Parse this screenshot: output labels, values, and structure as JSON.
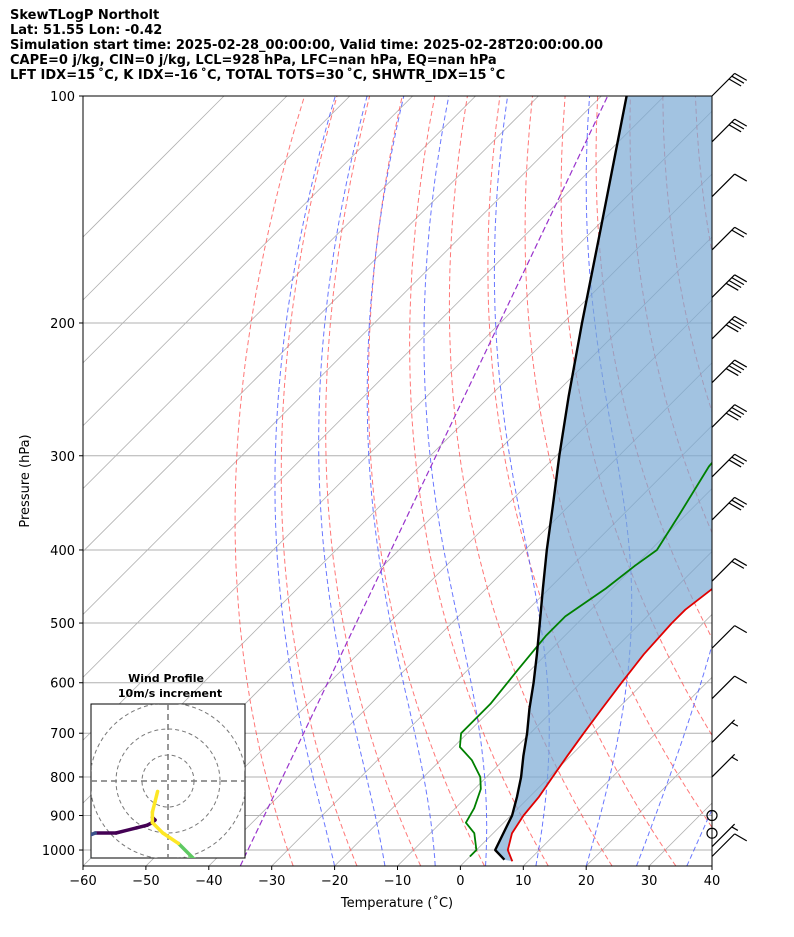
{
  "header": {
    "line1": "SkewTLogP Northolt",
    "line2": "Lat: 51.55   Lon: -0.42",
    "line3": "Simulation start time: 2025-02-28_00:00:00, Valid time: 2025-02-28T20:00:00.00",
    "line4": "CAPE=0 j/kg, CIN=0 j/kg, LCL=928 hPa, LFC=nan hPa, EQ=nan hPa",
    "line5": "LFT IDX=15 ˚C, K IDX=-16 ˚C, TOTAL TOTS=30 ˚C, SHWTR_IDX=15 ˚C"
  },
  "chart_data": {
    "type": "line",
    "xlabel": "Temperature (˚C)",
    "ylabel": "Pressure (hPa)",
    "x_ticks": [
      -60,
      -50,
      -40,
      -30,
      -20,
      -10,
      0,
      10,
      20,
      30,
      40
    ],
    "x_tick_labels": [
      "−60",
      "−50",
      "−40",
      "−30",
      "−20",
      "−10",
      "0",
      "10",
      "20",
      "30",
      "40"
    ],
    "y_ticks": [
      1000,
      900,
      800,
      700,
      600,
      500,
      400,
      300,
      200,
      100
    ],
    "xlim": [
      -60,
      40
    ],
    "ylim": [
      1050,
      100
    ],
    "y_scale": "log",
    "series": [
      {
        "role": "temperature",
        "color": "#e00000",
        "points": [
          [
            1035,
            7.5
          ],
          [
            1000,
            5
          ],
          [
            950,
            3
          ],
          [
            900,
            2
          ],
          [
            850,
            1.5
          ],
          [
            800,
            0.5
          ],
          [
            750,
            -0.5
          ],
          [
            700,
            -1.5
          ],
          [
            650,
            -2.5
          ],
          [
            600,
            -3.5
          ],
          [
            550,
            -4.5
          ],
          [
            500,
            -5
          ],
          [
            480,
            -5
          ],
          [
            450,
            -4
          ],
          [
            420,
            -4
          ],
          [
            400,
            -5
          ],
          [
            350,
            -9
          ],
          [
            300,
            -16
          ],
          [
            270,
            -19
          ],
          [
            250,
            -21
          ],
          [
            230,
            -22
          ],
          [
            210,
            -21
          ],
          [
            200,
            -19
          ],
          [
            185,
            -15
          ],
          [
            170,
            -12
          ],
          [
            150,
            -12
          ],
          [
            130,
            -11
          ],
          [
            115,
            -10
          ],
          [
            105,
            -10
          ],
          [
            100,
            -9
          ]
        ]
      },
      {
        "role": "dewpoint",
        "color": "#008000",
        "points": [
          [
            1020,
            0
          ],
          [
            1000,
            0
          ],
          [
            950,
            -3
          ],
          [
            920,
            -6
          ],
          [
            880,
            -7
          ],
          [
            830,
            -9
          ],
          [
            800,
            -11
          ],
          [
            760,
            -15
          ],
          [
            730,
            -19
          ],
          [
            700,
            -21
          ],
          [
            680,
            -21
          ],
          [
            640,
            -21
          ],
          [
            580,
            -22
          ],
          [
            520,
            -23
          ],
          [
            490,
            -23
          ],
          [
            450,
            -21
          ],
          [
            420,
            -20
          ],
          [
            400,
            -19
          ],
          [
            360,
            -21
          ],
          [
            310,
            -24
          ],
          [
            270,
            -25
          ],
          [
            240,
            -26
          ],
          [
            220,
            -25
          ],
          [
            200,
            -23
          ],
          [
            185,
            -22
          ],
          [
            170,
            -22
          ],
          [
            160,
            -21
          ],
          [
            145,
            -20
          ],
          [
            140,
            -19
          ],
          [
            132,
            -16
          ],
          [
            120,
            -14
          ],
          [
            110,
            -13
          ],
          [
            100,
            -11
          ]
        ]
      },
      {
        "role": "parcel",
        "color": "#000000",
        "points": [
          [
            1030,
            6
          ],
          [
            1000,
            3
          ],
          [
            928,
            1
          ],
          [
            900,
            0.2
          ],
          [
            850,
            -2
          ],
          [
            800,
            -4.5
          ],
          [
            750,
            -7.5
          ],
          [
            700,
            -10.5
          ],
          [
            650,
            -14
          ],
          [
            600,
            -17.5
          ],
          [
            550,
            -21.5
          ],
          [
            500,
            -26
          ],
          [
            450,
            -31
          ],
          [
            400,
            -36.5
          ],
          [
            350,
            -42.5
          ],
          [
            300,
            -49.5
          ],
          [
            250,
            -57.5
          ],
          [
            200,
            -67
          ],
          [
            150,
            -79
          ],
          [
            100,
            -96
          ]
        ]
      }
    ],
    "wind_barbs": [
      {
        "p": 100,
        "half": 0,
        "full": 3,
        "flag": 0
      },
      {
        "p": 115,
        "half": 0,
        "full": 3,
        "flag": 0
      },
      {
        "p": 136,
        "half": 0,
        "full": 1,
        "flag": 0
      },
      {
        "p": 160,
        "half": 0,
        "full": 2,
        "flag": 0
      },
      {
        "p": 185,
        "half": 0,
        "full": 4,
        "flag": 0
      },
      {
        "p": 210,
        "half": 0,
        "full": 4,
        "flag": 0
      },
      {
        "p": 240,
        "half": 0,
        "full": 4,
        "flag": 0
      },
      {
        "p": 275,
        "half": 0,
        "full": 4,
        "flag": 0
      },
      {
        "p": 320,
        "half": 0,
        "full": 3,
        "flag": 0
      },
      {
        "p": 365,
        "half": 0,
        "full": 3,
        "flag": 0
      },
      {
        "p": 440,
        "half": 0,
        "full": 2,
        "flag": 0
      },
      {
        "p": 540,
        "half": 0,
        "full": 1,
        "flag": 0
      },
      {
        "p": 630,
        "half": 0,
        "full": 1,
        "flag": 0
      },
      {
        "p": 720,
        "half": 1,
        "full": 0,
        "flag": 0
      },
      {
        "p": 800,
        "half": 1,
        "full": 0,
        "flag": 0
      },
      {
        "p": 900,
        "calm": true
      },
      {
        "p": 950,
        "calm": true
      },
      {
        "p": 990,
        "half": 1,
        "full": 0,
        "flag": 0
      },
      {
        "p": 1020,
        "half": 0,
        "full": 1,
        "flag": 0
      }
    ],
    "hodograph": {
      "title_line1": "Wind Profile",
      "title_line2": "10m/s increment",
      "rings": 3,
      "colormap": [
        "#440154",
        "#3b528b",
        "#21918c",
        "#5ec962",
        "#fde725"
      ],
      "u": [
        -6,
        -5,
        -6,
        -8,
        -12,
        -20,
        -28,
        -33,
        -35,
        -34,
        -32,
        -30,
        -28,
        -26,
        -22,
        -16,
        -10,
        -6,
        4,
        8,
        10,
        4,
        -2,
        -6,
        -6,
        -5,
        -4
      ],
      "v": [
        14,
        15,
        16,
        17,
        18,
        20,
        20,
        22,
        24,
        26,
        28,
        30,
        32,
        34,
        36,
        38,
        36,
        34,
        32,
        30,
        30,
        24,
        20,
        16,
        12,
        8,
        4
      ]
    }
  }
}
